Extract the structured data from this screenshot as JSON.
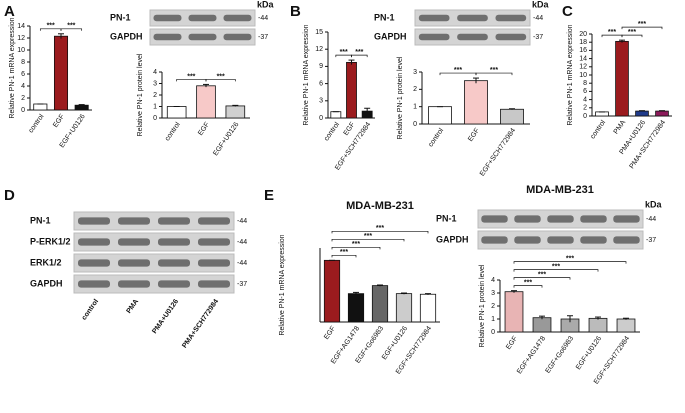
{
  "chart_data": [
    {
      "panel": "A",
      "type": "bar",
      "ylabel": "Relative  PN-1 mRNA expression",
      "categories": [
        "control",
        "EGF",
        "EGF+U0126"
      ],
      "values": [
        1,
        12.3,
        0.8
      ],
      "errors": [
        0,
        0.4,
        0.1
      ],
      "colors": [
        "#ffffff",
        "#9b1b1e",
        "#111111"
      ],
      "ylim": [
        0,
        14
      ],
      "yticks": [
        0,
        2,
        4,
        6,
        8,
        10,
        12,
        14
      ],
      "comparisons": [
        {
          "from": 0,
          "to": 1,
          "label": "***"
        },
        {
          "from": 1,
          "to": 2,
          "label": "***"
        }
      ]
    },
    {
      "type": "bar",
      "blot": {
        "bands": [
          "PN-1",
          "GAPDH"
        ],
        "kda": [
          "-44",
          "-37"
        ],
        "unit": "kDa"
      },
      "ylabel": "Relative  PN-1 protein level",
      "categories": [
        "control",
        "EGF",
        "EGF+U0126"
      ],
      "values": [
        1.0,
        2.8,
        1.05
      ],
      "errors": [
        0,
        0.12,
        0.05
      ],
      "colors": [
        "#ffffff",
        "#f7c9c8",
        "#d0d0d0"
      ],
      "ylim": [
        0,
        4
      ],
      "yticks": [
        0,
        1,
        2,
        3,
        4
      ],
      "comparisons": [
        {
          "from": 0,
          "to": 1,
          "label": "***"
        },
        {
          "from": 1,
          "to": 2,
          "label": "***"
        }
      ]
    },
    {
      "panel": "B",
      "type": "bar",
      "ylabel": "Relative  PN-1 mRNA expression",
      "categories": [
        "control",
        "EGF",
        "EGF+SCH772984"
      ],
      "values": [
        1.1,
        9.7,
        1.2
      ],
      "errors": [
        0,
        0.4,
        0.5
      ],
      "colors": [
        "#ffffff",
        "#9b1b1e",
        "#111111"
      ],
      "ylim": [
        0,
        15
      ],
      "yticks": [
        0,
        3,
        6,
        9,
        12,
        15
      ],
      "comparisons": [
        {
          "from": 0,
          "to": 1,
          "label": "***"
        },
        {
          "from": 1,
          "to": 2,
          "label": "***"
        }
      ]
    },
    {
      "type": "bar",
      "blot": {
        "bands": [
          "PN-1",
          "GAPDH"
        ],
        "kda": [
          "-44",
          "-37"
        ],
        "unit": "kDa"
      },
      "ylabel": "Relative  PN-1 protein level",
      "categories": [
        "control",
        "EGF",
        "EGF+SCH772984"
      ],
      "values": [
        1.0,
        2.5,
        0.85
      ],
      "errors": [
        0,
        0.15,
        0.03
      ],
      "colors": [
        "#ffffff",
        "#f7c9c8",
        "#c8c8c8"
      ],
      "ylim": [
        0,
        3
      ],
      "yticks": [
        0,
        1,
        2,
        3
      ],
      "comparisons": [
        {
          "from": 0,
          "to": 1,
          "label": "***"
        },
        {
          "from": 1,
          "to": 2,
          "label": "***"
        }
      ]
    },
    {
      "panel": "C",
      "type": "bar",
      "ylabel": "Relative  PN-1 mRNA expression",
      "categories": [
        "control",
        "PMA",
        "PMA+U0126",
        "PMA+SCH772984"
      ],
      "values": [
        1,
        18.2,
        1.2,
        1.2
      ],
      "errors": [
        0,
        0.3,
        0.1,
        0.1
      ],
      "colors": [
        "#ffffff",
        "#9b1b1e",
        "#1f3a8a",
        "#8b1a5a"
      ],
      "ylim": [
        0,
        20
      ],
      "yticks": [
        0,
        2,
        4,
        6,
        8,
        10,
        12,
        14,
        16,
        18,
        20
      ],
      "comparisons": [
        {
          "from": 0,
          "to": 1,
          "label": "***"
        },
        {
          "from": 1,
          "to": 2,
          "label": "***"
        },
        {
          "from": 1,
          "to": 3,
          "label": "***"
        }
      ]
    },
    {
      "panel": "D",
      "type": "blot",
      "categories": [
        "control",
        "PMA",
        "PMA+U0126",
        "PMA+SCH772984"
      ],
      "bands": [
        "PN-1",
        "P-ERK1/2",
        "ERK1/2",
        "GAPDH"
      ],
      "kda": [
        "-44",
        "-44",
        "-44",
        "-37"
      ]
    },
    {
      "panel": "E",
      "type": "bar",
      "title": "MDA-MB-231",
      "ylabel": "Relative PN-1 mRNA expression",
      "categories": [
        "EGF",
        "EGF+AG1478",
        "EGF+Go6983",
        "EGF+U0126",
        "EGF+SCH772984"
      ],
      "values": [
        1.0,
        0.46,
        0.59,
        0.46,
        0.45
      ],
      "errors": [
        0,
        0.02,
        0.01,
        0.01,
        0.01
      ],
      "colors": [
        "#9b1b1e",
        "#111111",
        "#666666",
        "#cccccc",
        "#ffffff"
      ],
      "ylim": [
        0,
        1.2
      ],
      "comparisons": [
        {
          "from": 0,
          "to": 1,
          "label": "***"
        },
        {
          "from": 0,
          "to": 2,
          "label": "***"
        },
        {
          "from": 0,
          "to": 3,
          "label": "***"
        },
        {
          "from": 0,
          "to": 4,
          "label": "***"
        }
      ]
    },
    {
      "type": "bar",
      "title": "MDA-MB-231",
      "blot": {
        "bands": [
          "PN-1",
          "GAPDH"
        ],
        "kda": [
          "-44",
          "-37"
        ],
        "unit": "kDa"
      },
      "ylabel": "Relative PN-1 protein level",
      "categories": [
        "EGF",
        "EGF+AG1478",
        "EGF+Go6983",
        "EGF+U0126",
        "EGF+SCH772984"
      ],
      "values": [
        3.1,
        1.1,
        1.0,
        1.05,
        1.0
      ],
      "errors": [
        0.08,
        0.12,
        0.25,
        0.1,
        0.06
      ],
      "colors": [
        "#e8b4b4",
        "#999999",
        "#aaaaaa",
        "#bbbbbb",
        "#cccccc"
      ],
      "ylim": [
        0,
        4
      ],
      "yticks": [
        0,
        1,
        2,
        3,
        4
      ],
      "comparisons": [
        {
          "from": 0,
          "to": 1,
          "label": "***"
        },
        {
          "from": 0,
          "to": 2,
          "label": "***"
        },
        {
          "from": 0,
          "to": 3,
          "label": "***"
        },
        {
          "from": 0,
          "to": 4,
          "label": "***"
        }
      ]
    }
  ]
}
